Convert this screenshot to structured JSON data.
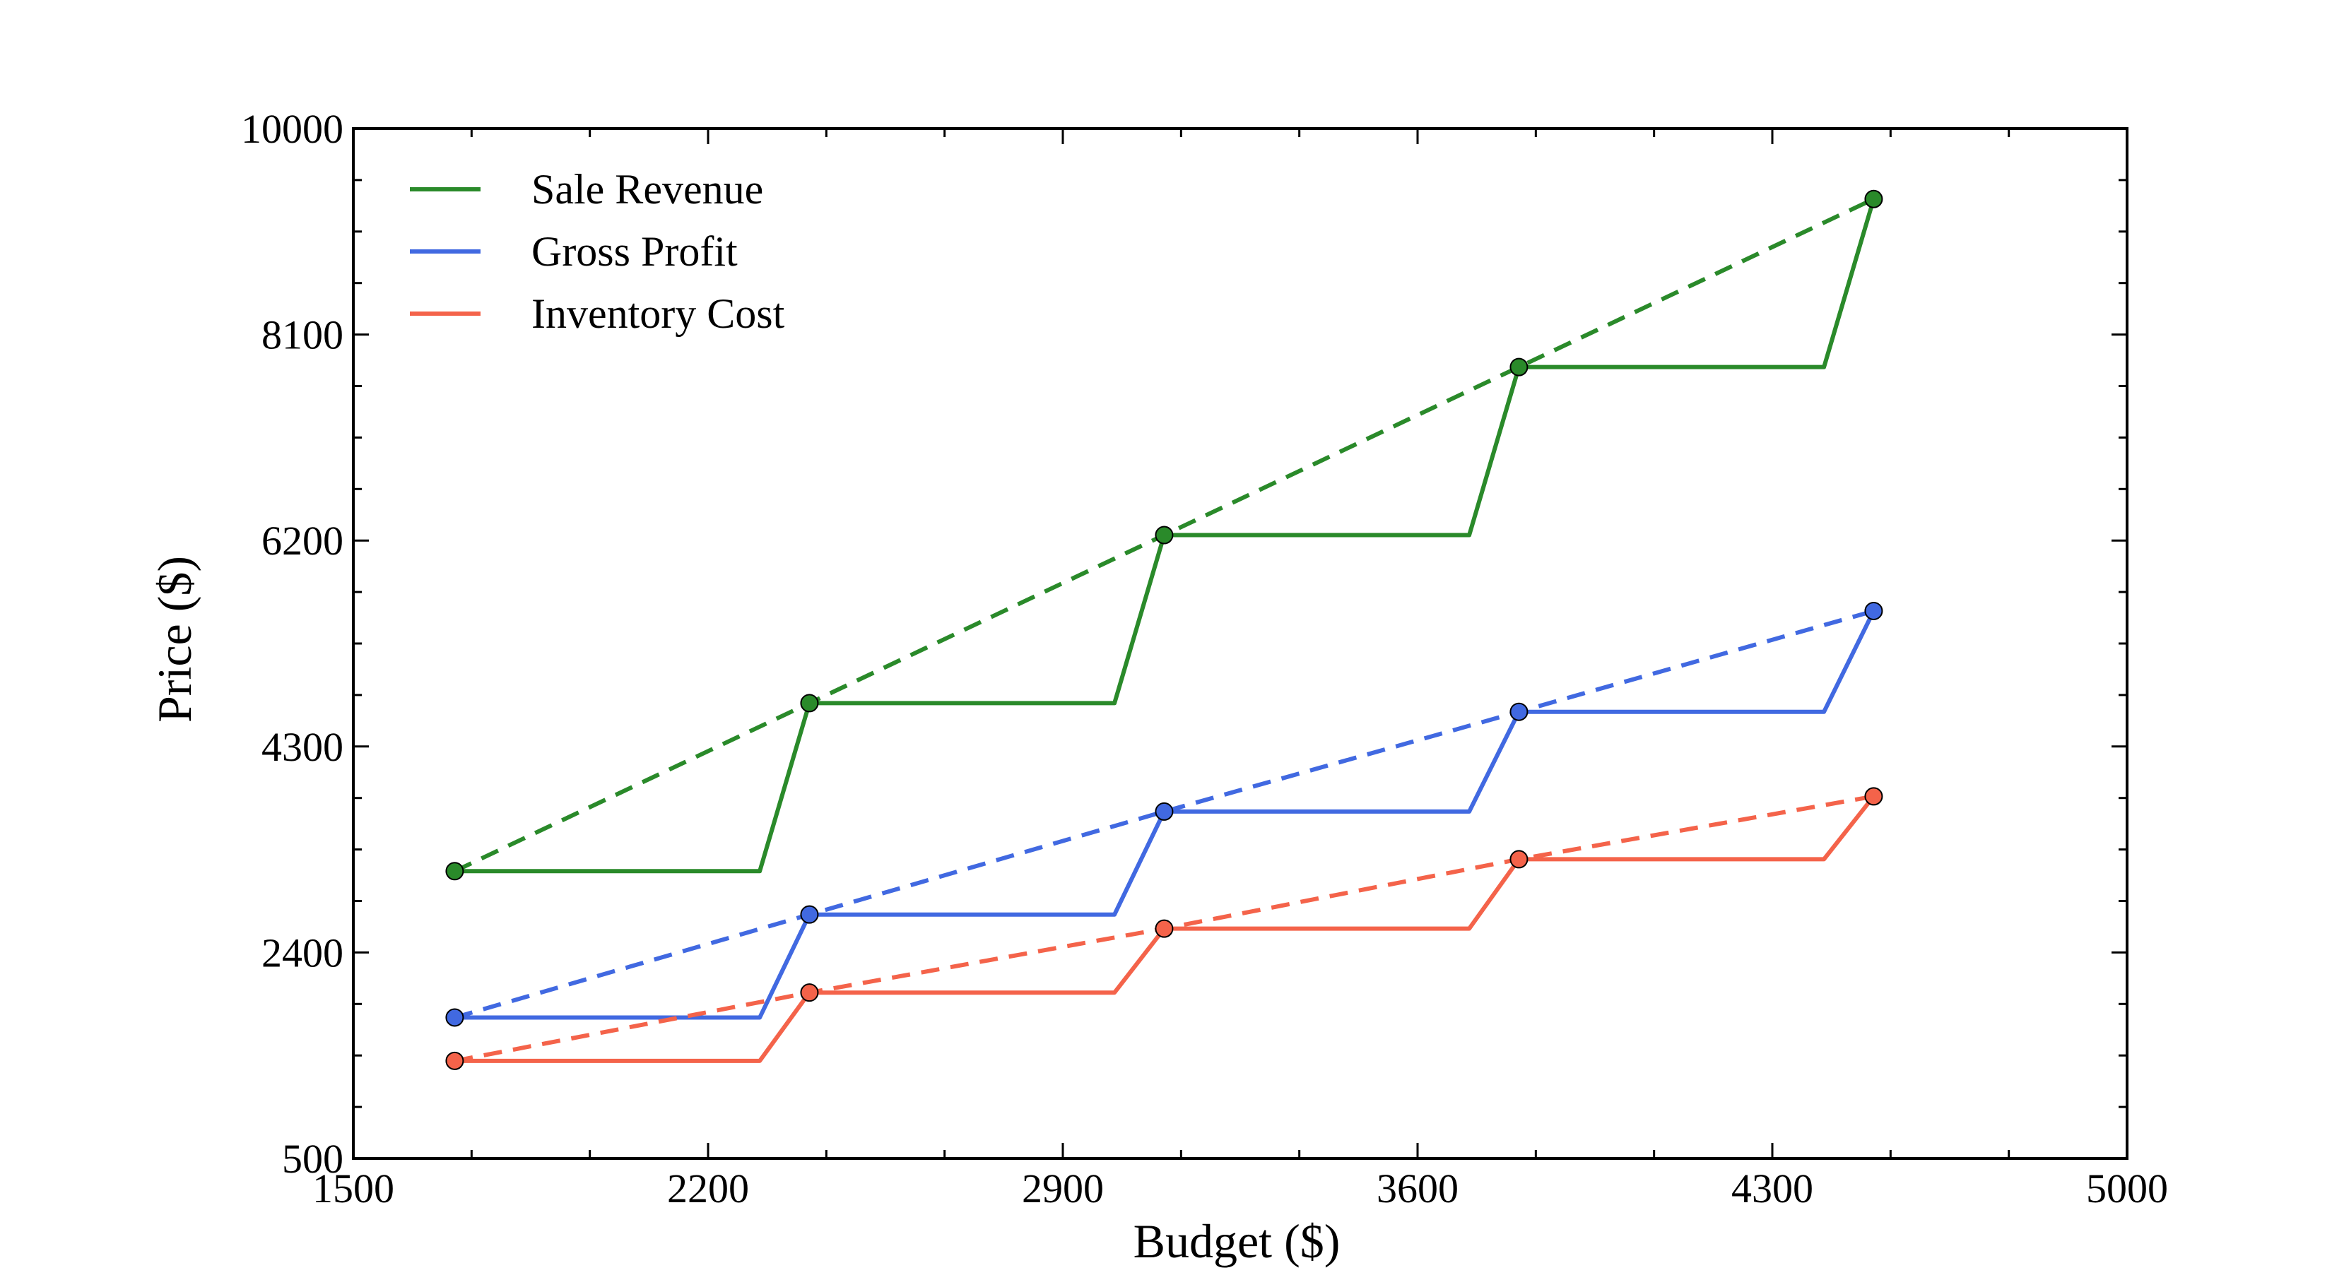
{
  "chart_data": {
    "type": "line",
    "title": "",
    "xlabel": "Budget ($)",
    "ylabel": "Price ($)",
    "xlim": [
      1500,
      5000
    ],
    "ylim": [
      500,
      10000
    ],
    "xticks": [
      1500,
      2200,
      2900,
      3600,
      4300,
      5000
    ],
    "yticks": [
      500,
      2400,
      4300,
      6200,
      8100,
      10000
    ],
    "x_tick_labels": [
      "1500",
      "2200",
      "2900",
      "3600",
      "4300",
      "5000"
    ],
    "y_tick_labels": [
      "500",
      "2400",
      "4300",
      "6200",
      "8100",
      "10000"
    ],
    "grid": false,
    "legend_position": "top-left",
    "series": [
      {
        "name": "Sale Revenue",
        "color": "#2a8a2a",
        "points_x": [
          1700,
          2400,
          3100,
          3800,
          4500
        ],
        "points_y": [
          3150,
          4700,
          6250,
          7800,
          9350
        ],
        "step_line": true,
        "dashed_trend": true
      },
      {
        "name": "Gross Profit",
        "color": "#4169e1",
        "points_x": [
          1700,
          2400,
          3100,
          3800,
          4500
        ],
        "points_y": [
          1800,
          2750,
          3700,
          4620,
          5550
        ],
        "step_line": true,
        "dashed_trend": true
      },
      {
        "name": "Inventory Cost",
        "color": "#f4634a",
        "points_x": [
          1700,
          2400,
          3100,
          3800,
          4500
        ],
        "points_y": [
          1400,
          2030,
          2620,
          3260,
          3840
        ],
        "step_line": true,
        "dashed_trend": true
      }
    ]
  }
}
